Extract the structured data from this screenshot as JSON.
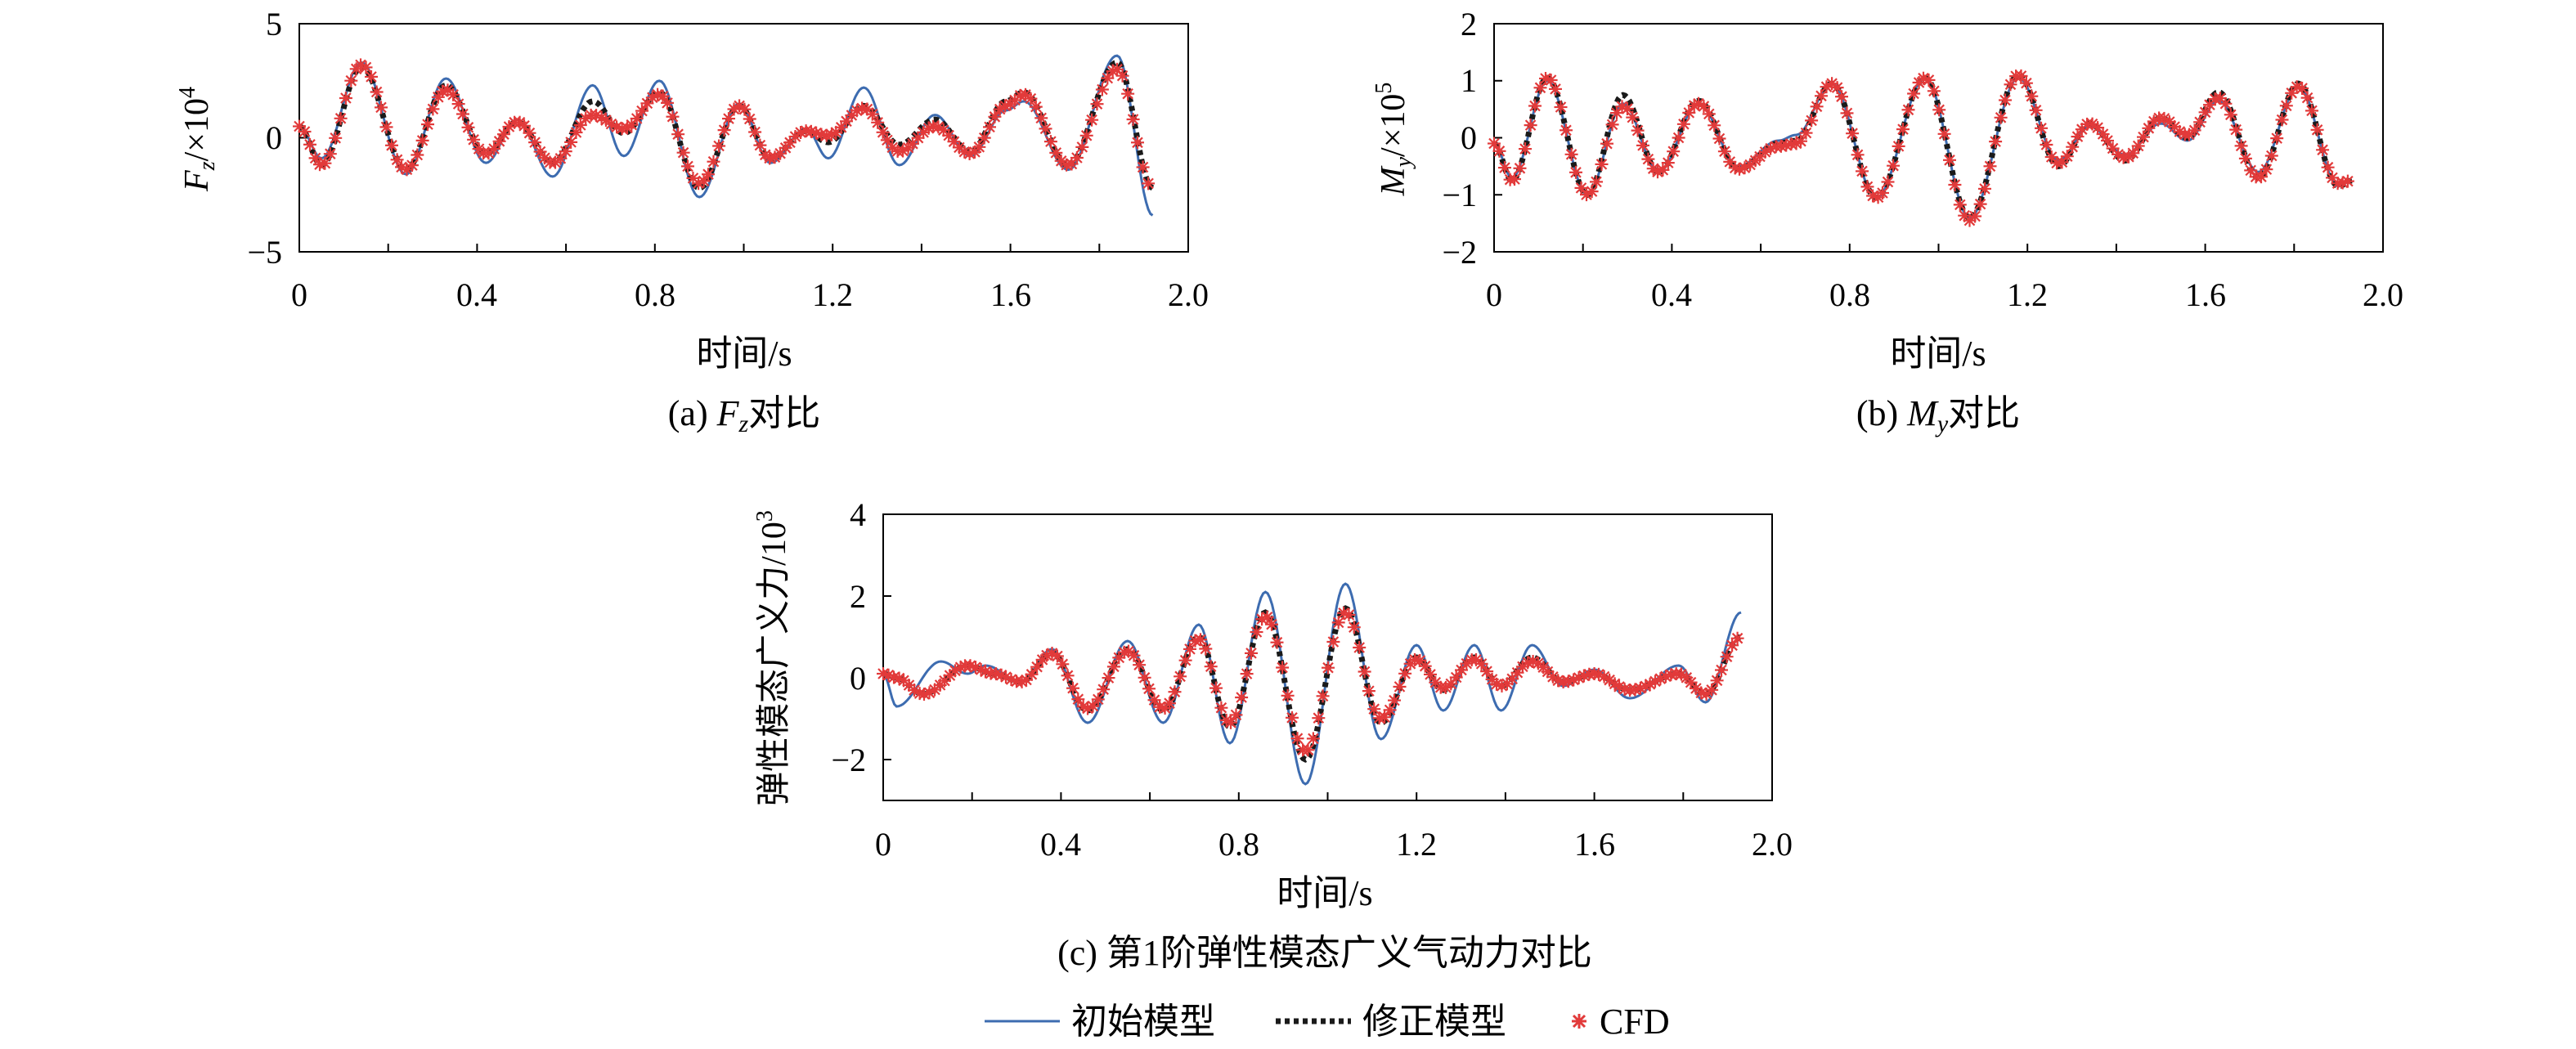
{
  "colors": {
    "initial": "#3d6cb0",
    "corrected": "#1a1a1a",
    "cfd": "#e23a3a",
    "axis": "#000000"
  },
  "legend": {
    "items": [
      {
        "key": "initial",
        "label": "初始模型"
      },
      {
        "key": "corrected",
        "label": "修正模型"
      },
      {
        "key": "cfd",
        "label": "CFD"
      }
    ]
  },
  "chart_data": [
    {
      "id": "a",
      "type": "line",
      "caption_prefix": "(a) ",
      "caption_sym": "F",
      "caption_sub": "z",
      "caption_suffix": "对比",
      "ylabel_sym": "F",
      "ylabel_sub": "z",
      "ylabel_unit": "/×10",
      "ylabel_exp": "4",
      "xlabel": "时间/s",
      "xlim": [
        0,
        2.0
      ],
      "ylim": [
        -5,
        5
      ],
      "xticks": [
        "0",
        "0.4",
        "0.8",
        "1.2",
        "1.6",
        "2.0"
      ],
      "yticks": [
        "−5",
        "0",
        "5"
      ],
      "ytick_values": [
        -5,
        0,
        5
      ],
      "keypoints": {
        "initial": [
          [
            0,
            0.5
          ],
          [
            0.05,
            -0.9
          ],
          [
            0.14,
            3.3
          ],
          [
            0.24,
            -1.6
          ],
          [
            0.33,
            2.6
          ],
          [
            0.42,
            -1.1
          ],
          [
            0.49,
            0.8
          ],
          [
            0.57,
            -1.7
          ],
          [
            0.66,
            2.3
          ],
          [
            0.73,
            -0.8
          ],
          [
            0.81,
            2.5
          ],
          [
            0.9,
            -2.6
          ],
          [
            0.99,
            1.5
          ],
          [
            1.06,
            -1.1
          ],
          [
            1.14,
            0.4
          ],
          [
            1.19,
            -0.9
          ],
          [
            1.27,
            2.2
          ],
          [
            1.35,
            -1.2
          ],
          [
            1.43,
            1.0
          ],
          [
            1.51,
            -0.8
          ],
          [
            1.59,
            1.2
          ],
          [
            1.63,
            1.6
          ],
          [
            1.73,
            -1.4
          ],
          [
            1.84,
            3.6
          ],
          [
            1.92,
            -3.4
          ]
        ],
        "corrected": [
          [
            0,
            0.5
          ],
          [
            0.05,
            -1.2
          ],
          [
            0.14,
            3.1
          ],
          [
            0.24,
            -1.4
          ],
          [
            0.33,
            2.3
          ],
          [
            0.42,
            -0.7
          ],
          [
            0.49,
            0.7
          ],
          [
            0.57,
            -1.1
          ],
          [
            0.66,
            1.6
          ],
          [
            0.73,
            0.2
          ],
          [
            0.81,
            2.0
          ],
          [
            0.9,
            -2.2
          ],
          [
            0.99,
            1.4
          ],
          [
            1.06,
            -0.9
          ],
          [
            1.14,
            0.3
          ],
          [
            1.19,
            -0.2
          ],
          [
            1.27,
            1.4
          ],
          [
            1.35,
            -0.3
          ],
          [
            1.43,
            0.8
          ],
          [
            1.51,
            -0.6
          ],
          [
            1.59,
            1.6
          ],
          [
            1.63,
            2.0
          ],
          [
            1.73,
            -1.2
          ],
          [
            1.84,
            3.3
          ],
          [
            1.92,
            -2.2
          ]
        ],
        "cfd": [
          [
            0,
            0.5
          ],
          [
            0.05,
            -1.2
          ],
          [
            0.14,
            3.2
          ],
          [
            0.24,
            -1.4
          ],
          [
            0.33,
            2.1
          ],
          [
            0.42,
            -0.7
          ],
          [
            0.49,
            0.7
          ],
          [
            0.57,
            -1.1
          ],
          [
            0.66,
            1.0
          ],
          [
            0.73,
            0.4
          ],
          [
            0.81,
            1.9
          ],
          [
            0.9,
            -2.0
          ],
          [
            0.99,
            1.4
          ],
          [
            1.06,
            -0.9
          ],
          [
            1.14,
            0.3
          ],
          [
            1.19,
            0.1
          ],
          [
            1.27,
            1.3
          ],
          [
            1.35,
            -0.6
          ],
          [
            1.43,
            0.5
          ],
          [
            1.51,
            -0.7
          ],
          [
            1.59,
            1.4
          ],
          [
            1.63,
            1.9
          ],
          [
            1.73,
            -1.2
          ],
          [
            1.84,
            3.0
          ],
          [
            1.92,
            -2.2
          ]
        ]
      }
    },
    {
      "id": "b",
      "type": "line",
      "caption_prefix": "(b) ",
      "caption_sym": "M",
      "caption_sub": "y",
      "caption_suffix": "对比",
      "ylabel_sym": "M",
      "ylabel_sub": "y",
      "ylabel_unit": "/×10",
      "ylabel_exp": "5",
      "xlabel": "时间/s",
      "xlim": [
        0,
        2.0
      ],
      "ylim": [
        -2,
        2
      ],
      "xticks": [
        "0",
        "0.4",
        "0.8",
        "1.2",
        "1.6",
        "2.0"
      ],
      "yticks": [
        "−2",
        "−1",
        "0",
        "1",
        "2"
      ],
      "ytick_values": [
        -2,
        -1,
        0,
        1,
        2
      ],
      "keypoints": {
        "initial": [
          [
            0,
            -0.1
          ],
          [
            0.04,
            -0.7
          ],
          [
            0.12,
            1.0
          ],
          [
            0.21,
            -1.0
          ],
          [
            0.29,
            0.6
          ],
          [
            0.37,
            -0.6
          ],
          [
            0.46,
            0.6
          ],
          [
            0.55,
            -0.5
          ],
          [
            0.64,
            -0.05
          ],
          [
            0.68,
            0.05
          ],
          [
            0.76,
            0.95
          ],
          [
            0.86,
            -1.05
          ],
          [
            0.97,
            1.05
          ],
          [
            1.07,
            -1.4
          ],
          [
            1.18,
            1.05
          ],
          [
            1.27,
            -0.4
          ],
          [
            1.34,
            0.2
          ],
          [
            1.42,
            -0.3
          ],
          [
            1.5,
            0.25
          ],
          [
            1.56,
            -0.05
          ],
          [
            1.63,
            0.65
          ],
          [
            1.72,
            -0.6
          ],
          [
            1.81,
            0.9
          ],
          [
            1.9,
            -0.85
          ],
          [
            1.93,
            -0.75
          ]
        ],
        "corrected": [
          [
            0,
            -0.1
          ],
          [
            0.04,
            -0.75
          ],
          [
            0.12,
            1.05
          ],
          [
            0.21,
            -1.0
          ],
          [
            0.29,
            0.75
          ],
          [
            0.37,
            -0.6
          ],
          [
            0.46,
            0.65
          ],
          [
            0.55,
            -0.55
          ],
          [
            0.64,
            -0.1
          ],
          [
            0.68,
            -0.05
          ],
          [
            0.76,
            0.95
          ],
          [
            0.86,
            -1.05
          ],
          [
            0.97,
            1.05
          ],
          [
            1.07,
            -1.4
          ],
          [
            1.18,
            1.1
          ],
          [
            1.27,
            -0.5
          ],
          [
            1.34,
            0.25
          ],
          [
            1.42,
            -0.4
          ],
          [
            1.5,
            0.35
          ],
          [
            1.56,
            0.0
          ],
          [
            1.63,
            0.8
          ],
          [
            1.72,
            -0.7
          ],
          [
            1.81,
            0.95
          ],
          [
            1.9,
            -0.85
          ],
          [
            1.93,
            -0.75
          ]
        ],
        "cfd": [
          [
            0,
            -0.1
          ],
          [
            0.04,
            -0.75
          ],
          [
            0.12,
            1.05
          ],
          [
            0.21,
            -1.0
          ],
          [
            0.29,
            0.55
          ],
          [
            0.37,
            -0.6
          ],
          [
            0.46,
            0.6
          ],
          [
            0.55,
            -0.55
          ],
          [
            0.64,
            -0.15
          ],
          [
            0.68,
            -0.1
          ],
          [
            0.76,
            0.95
          ],
          [
            0.86,
            -1.05
          ],
          [
            0.97,
            1.05
          ],
          [
            1.07,
            -1.45
          ],
          [
            1.18,
            1.1
          ],
          [
            1.27,
            -0.45
          ],
          [
            1.34,
            0.25
          ],
          [
            1.42,
            -0.35
          ],
          [
            1.5,
            0.35
          ],
          [
            1.56,
            0.05
          ],
          [
            1.63,
            0.7
          ],
          [
            1.72,
            -0.7
          ],
          [
            1.81,
            0.9
          ],
          [
            1.9,
            -0.8
          ],
          [
            1.93,
            -0.75
          ]
        ]
      }
    },
    {
      "id": "c",
      "type": "line",
      "caption_prefix": "(c) 第1阶弹性模态广义气动力对比",
      "caption_sym": "",
      "caption_sub": "",
      "caption_suffix": "",
      "ylabel_sym": "",
      "ylabel_sub": "",
      "ylabel_unit": "弹性模态广义力/10",
      "ylabel_exp": "3",
      "xlabel": "时间/s",
      "xlim": [
        0,
        2.0
      ],
      "ylim": [
        -3,
        4
      ],
      "xticks": [
        "0",
        "0.4",
        "0.8",
        "1.2",
        "1.6",
        "2.0"
      ],
      "yticks": [
        "−2",
        "0",
        "2",
        "4"
      ],
      "ytick_values": [
        -2,
        0,
        2,
        4
      ],
      "keypoints": {
        "initial": [
          [
            0,
            0.1
          ],
          [
            0.03,
            -0.7
          ],
          [
            0.13,
            0.4
          ],
          [
            0.19,
            0.1
          ],
          [
            0.23,
            0.3
          ],
          [
            0.31,
            -0.1
          ],
          [
            0.38,
            0.7
          ],
          [
            0.46,
            -1.1
          ],
          [
            0.55,
            0.9
          ],
          [
            0.63,
            -1.1
          ],
          [
            0.71,
            1.3
          ],
          [
            0.78,
            -1.6
          ],
          [
            0.86,
            2.1
          ],
          [
            0.95,
            -2.6
          ],
          [
            1.04,
            2.3
          ],
          [
            1.12,
            -1.5
          ],
          [
            1.2,
            0.8
          ],
          [
            1.26,
            -0.8
          ],
          [
            1.33,
            0.8
          ],
          [
            1.39,
            -0.8
          ],
          [
            1.46,
            0.8
          ],
          [
            1.53,
            -0.2
          ],
          [
            1.6,
            0.2
          ],
          [
            1.68,
            -0.5
          ],
          [
            1.79,
            0.3
          ],
          [
            1.85,
            -0.6
          ],
          [
            1.93,
            1.6
          ]
        ],
        "corrected": [
          [
            0,
            0.1
          ],
          [
            0.03,
            0.0
          ],
          [
            0.09,
            -0.4
          ],
          [
            0.19,
            0.3
          ],
          [
            0.25,
            0.1
          ],
          [
            0.31,
            -0.1
          ],
          [
            0.38,
            0.6
          ],
          [
            0.46,
            -0.8
          ],
          [
            0.55,
            0.7
          ],
          [
            0.63,
            -0.8
          ],
          [
            0.71,
            1.0
          ],
          [
            0.78,
            -1.2
          ],
          [
            0.86,
            1.6
          ],
          [
            0.95,
            -2.0
          ],
          [
            1.04,
            1.7
          ],
          [
            1.12,
            -1.1
          ],
          [
            1.2,
            0.5
          ],
          [
            1.26,
            -0.3
          ],
          [
            1.33,
            0.5
          ],
          [
            1.39,
            -0.2
          ],
          [
            1.46,
            0.5
          ],
          [
            1.53,
            -0.1
          ],
          [
            1.6,
            0.1
          ],
          [
            1.68,
            -0.3
          ],
          [
            1.79,
            0.1
          ],
          [
            1.85,
            -0.4
          ],
          [
            1.93,
            1.0
          ]
        ],
        "cfd": [
          [
            0,
            0.1
          ],
          [
            0.03,
            0.0
          ],
          [
            0.09,
            -0.4
          ],
          [
            0.19,
            0.3
          ],
          [
            0.25,
            0.1
          ],
          [
            0.31,
            -0.1
          ],
          [
            0.38,
            0.6
          ],
          [
            0.46,
            -0.75
          ],
          [
            0.55,
            0.65
          ],
          [
            0.63,
            -0.75
          ],
          [
            0.71,
            0.95
          ],
          [
            0.78,
            -1.1
          ],
          [
            0.86,
            1.5
          ],
          [
            0.95,
            -1.8
          ],
          [
            1.04,
            1.6
          ],
          [
            1.12,
            -1.0
          ],
          [
            1.2,
            0.45
          ],
          [
            1.26,
            -0.25
          ],
          [
            1.33,
            0.45
          ],
          [
            1.39,
            -0.2
          ],
          [
            1.46,
            0.4
          ],
          [
            1.53,
            -0.1
          ],
          [
            1.6,
            0.1
          ],
          [
            1.68,
            -0.3
          ],
          [
            1.79,
            0.1
          ],
          [
            1.85,
            -0.4
          ],
          [
            1.93,
            1.0
          ]
        ]
      }
    }
  ]
}
